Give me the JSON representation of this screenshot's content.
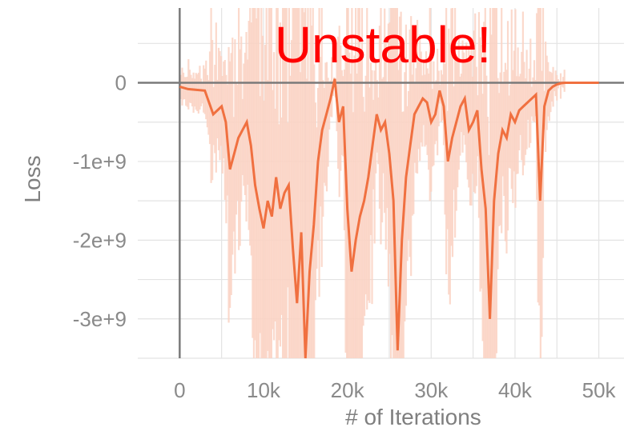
{
  "chart_data": {
    "type": "line",
    "title": "",
    "annotation": "Unstable!",
    "xlabel": "# of Iterations",
    "ylabel": "Loss",
    "xlim": [
      -5000,
      53000
    ],
    "ylim": [
      -3500000000.0,
      950000000.0
    ],
    "x_ticks": [
      0,
      10000,
      20000,
      30000,
      40000,
      50000
    ],
    "x_tick_labels": [
      "0",
      "10k",
      "20k",
      "30k",
      "40k",
      "50k"
    ],
    "y_ticks": [
      0,
      -1000000000,
      -2000000000,
      -3000000000
    ],
    "y_tick_labels": [
      "0",
      "-1e+9",
      "-2e+9",
      "-3e+9"
    ],
    "grid": true,
    "legend": "none",
    "colors": {
      "smoothed_line": "#f07040",
      "raw_area": "#fbd3c4",
      "grid": "#e3e3e3",
      "axis_zero": "#7a7a7a",
      "annotation": "#ff0000",
      "text": "#8a8a8a"
    },
    "series": [
      {
        "x": [
          0,
          1000,
          2000,
          3000,
          4000,
          5000,
          5500,
          6000,
          6500,
          7000,
          7500,
          8000,
          8500,
          9000,
          9500,
          10000,
          10500,
          11000,
          11500,
          12000,
          12500,
          13000,
          13500,
          14000,
          14500,
          15000,
          15500,
          16000,
          16500,
          17000,
          17500,
          18000,
          18500,
          19000,
          19500,
          20000,
          20500,
          21000,
          21500,
          22000,
          22500,
          23000,
          23500,
          24000,
          24500,
          25000,
          25500,
          26000,
          26500,
          27000,
          27500,
          28000,
          28500,
          29000,
          29500,
          30000,
          30500,
          31000,
          31500,
          32000,
          32500,
          33000,
          33500,
          34000,
          34500,
          35000,
          35500,
          36000,
          36500,
          37000,
          37500,
          38000,
          38500,
          39000,
          39500,
          40000,
          40500,
          41000,
          41500,
          42000,
          42500,
          43000,
          43500,
          44000,
          44500,
          45000,
          45500,
          46000,
          46500,
          47000,
          48000,
          49000,
          50000
        ],
        "y": [
          -50000000,
          -80000000,
          -90000000,
          -100000000,
          -400000000,
          -300000000,
          -500000000,
          -1100000000,
          -900000000,
          -700000000,
          -600000000,
          -500000000,
          -800000000,
          -1300000000,
          -1600000000,
          -1850000000,
          -1500000000,
          -1700000000,
          -1200000000,
          -1600000000,
          -1400000000,
          -1300000000,
          -2100000000,
          -2800000000,
          -1900000000,
          -3500000000,
          -2400000000,
          -1800000000,
          -1000000000,
          -600000000,
          -400000000,
          -200000000,
          50000000,
          -500000000,
          -300000000,
          -1600000000,
          -2400000000,
          -2000000000,
          -1700000000,
          -1500000000,
          -1200000000,
          -800000000,
          -400000000,
          -600000000,
          -500000000,
          -900000000,
          -1500000000,
          -3400000000,
          -2000000000,
          -1200000000,
          -800000000,
          -400000000,
          -300000000,
          -200000000,
          -250000000,
          -500000000,
          -400000000,
          -100000000,
          -300000000,
          -1000000000,
          -700000000,
          -500000000,
          -300000000,
          -200000000,
          -600000000,
          -500000000,
          -350000000,
          -1100000000,
          -1600000000,
          -3000000000,
          -1500000000,
          -900000000,
          -600000000,
          -700000000,
          -400000000,
          -500000000,
          -350000000,
          -300000000,
          -250000000,
          -200000000,
          -150000000,
          -1500000000,
          -300000000,
          -100000000,
          -50000000,
          -20000000,
          -5000000,
          0,
          0,
          0,
          0,
          0,
          0
        ]
      }
    ]
  }
}
